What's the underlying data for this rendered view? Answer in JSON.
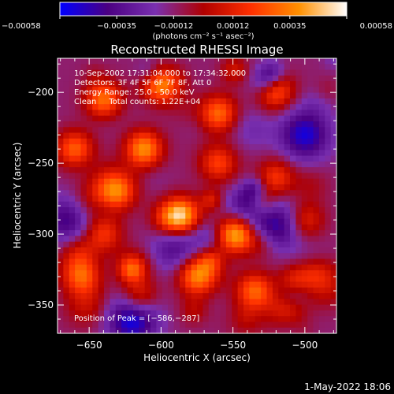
{
  "chart_data": {
    "type": "heatmap",
    "title": "Reconstructed RHESSI Image",
    "xlabel": "Heliocentric X (arcsec)",
    "ylabel": "Heliocentric Y (arcsec)",
    "xlim": [
      -672,
      -478
    ],
    "ylim": [
      -370,
      -176
    ],
    "x_ticks": [
      -650,
      -600,
      -550,
      -500
    ],
    "x_tick_labels": [
      "−650",
      "−600",
      "−550",
      "−500"
    ],
    "y_ticks": [
      -350,
      -300,
      -250,
      -200
    ],
    "y_tick_labels": [
      "−350",
      "−300",
      "−250",
      "−200"
    ],
    "colorbar": {
      "min": -0.00058,
      "max": 0.00058,
      "ticks": [
        -0.00058,
        -0.00035,
        -0.00012,
        0.00012,
        0.00035,
        0.00058
      ],
      "tick_labels": [
        "−0.00058",
        "−0.00035",
        "−0.00012",
        "0.00012",
        "0.00035",
        "0.00058"
      ],
      "unit_label": "(photons cm⁻² s⁻¹ asec⁻²)",
      "colors": [
        "#0000ff",
        "#4b0082",
        "#7a30b0",
        "#b00000",
        "#ff3000",
        "#ff9000",
        "#ffffff"
      ]
    },
    "annotations": {
      "time": "10-Sep-2002 17:31:04.000 to 17:34:32.000",
      "detectors": "Detectors: 3F 4F 5F 6F 7F 8F, Att 0",
      "energy": "Energy Range: 25.0 - 50.0 keV",
      "method": "Clean     Total counts: 1.22E+04",
      "peak": "Position of Peak = [−586,−287]"
    },
    "peak_position": [
      -586,
      -287
    ],
    "image_grid": {
      "nx": 48,
      "ny": 48
    },
    "hot_spots": [
      {
        "x": -586,
        "y": -287,
        "v": 0.00058
      },
      {
        "x": -548,
        "y": -300,
        "v": 0.00055
      },
      {
        "x": -612,
        "y": -240,
        "v": 0.0005
      },
      {
        "x": -640,
        "y": -205,
        "v": 0.00045
      },
      {
        "x": -600,
        "y": -195,
        "v": 0.00048
      },
      {
        "x": -560,
        "y": -215,
        "v": 0.00042
      },
      {
        "x": -520,
        "y": -200,
        "v": 0.0004
      },
      {
        "x": -660,
        "y": -240,
        "v": 0.0004
      },
      {
        "x": -630,
        "y": -270,
        "v": 0.00038
      },
      {
        "x": -575,
        "y": -330,
        "v": 0.00035
      },
      {
        "x": -535,
        "y": -340,
        "v": 0.0004
      },
      {
        "x": -505,
        "y": -335,
        "v": 0.00035
      },
      {
        "x": -655,
        "y": -330,
        "v": 0.00035
      },
      {
        "x": -615,
        "y": -345,
        "v": 0.0003
      },
      {
        "x": -560,
        "y": -250,
        "v": 0.00032
      },
      {
        "x": -520,
        "y": -260,
        "v": 0.0003
      },
      {
        "x": -500,
        "y": -290,
        "v": 0.00028
      },
      {
        "x": -640,
        "y": -300,
        "v": 0.0003
      }
    ],
    "cold_spots": [
      {
        "x": -620,
        "y": -360,
        "v": -0.00045
      },
      {
        "x": -500,
        "y": -230,
        "v": -0.0004
      },
      {
        "x": -520,
        "y": -295,
        "v": -0.00035
      },
      {
        "x": -665,
        "y": -290,
        "v": -0.0003
      },
      {
        "x": -590,
        "y": -310,
        "v": -0.00025
      }
    ]
  },
  "footer": {
    "timestamp": "1-May-2022 18:06"
  }
}
